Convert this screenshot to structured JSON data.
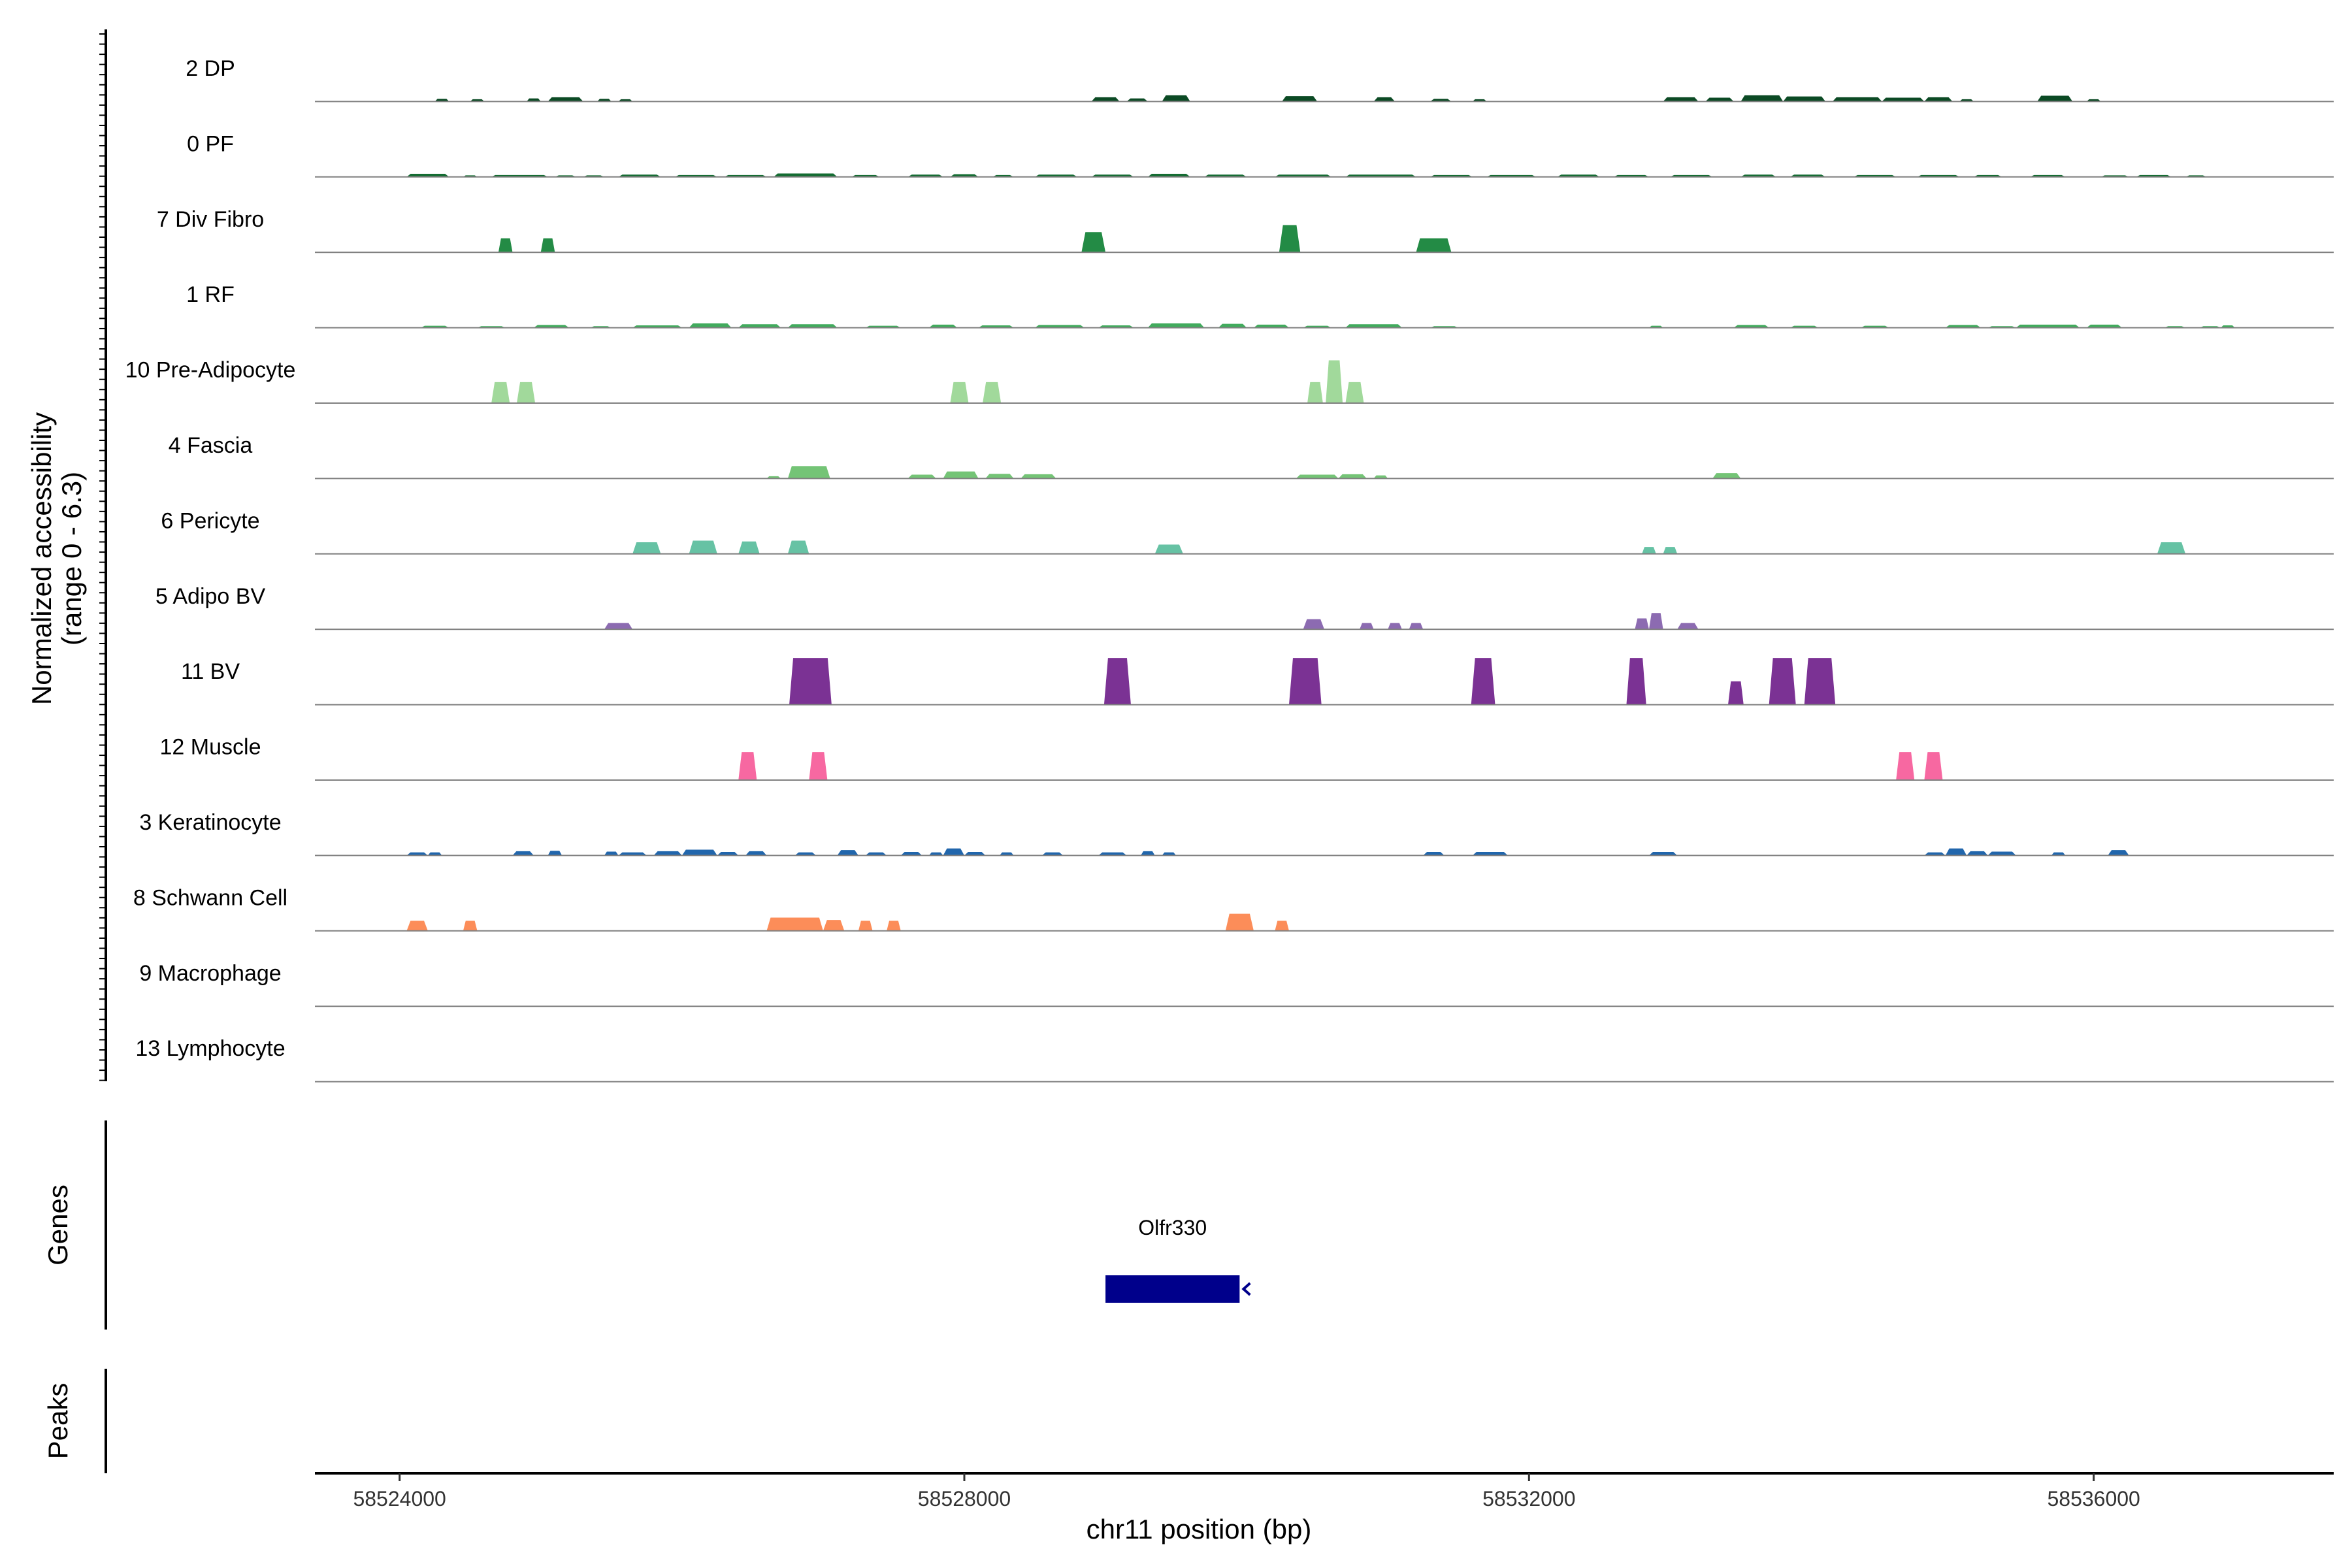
{
  "chart_data": {
    "type": "area",
    "title": "",
    "ylabel_line1": "Normalized accessibility",
    "ylabel_line2": "(range 0 - 6.3)",
    "ylim": [
      0,
      6.3
    ],
    "xlabel": "chr11 position (bp)",
    "xlim": [
      58523400,
      58537700
    ],
    "xticks": [
      58524000,
      58528000,
      58532000,
      58536000
    ],
    "xtick_labels": [
      "58524000",
      "58528000",
      "58532000",
      "58536000"
    ],
    "tracks": [
      {
        "name": "2 DP",
        "color": "#0b4a24",
        "peaks": [
          [
            58524250,
            58524350,
            0.35
          ],
          [
            58524500,
            58524600,
            0.3
          ],
          [
            58524900,
            58525000,
            0.4
          ],
          [
            58525050,
            58525300,
            0.55
          ],
          [
            58525400,
            58525500,
            0.35
          ],
          [
            58525550,
            58525650,
            0.3
          ],
          [
            58528900,
            58529100,
            0.55
          ],
          [
            58529150,
            58529300,
            0.4
          ],
          [
            58529400,
            58529600,
            0.8
          ],
          [
            58530250,
            58530500,
            0.7
          ],
          [
            58530900,
            58531050,
            0.55
          ],
          [
            58531300,
            58531450,
            0.35
          ],
          [
            58531600,
            58531700,
            0.3
          ],
          [
            58532950,
            58533200,
            0.55
          ],
          [
            58533250,
            58533450,
            0.5
          ],
          [
            58533500,
            58533800,
            0.8
          ],
          [
            58533800,
            58534100,
            0.65
          ],
          [
            58534150,
            58534500,
            0.55
          ],
          [
            58534500,
            58534800,
            0.5
          ],
          [
            58534800,
            58535000,
            0.55
          ],
          [
            58535050,
            58535150,
            0.3
          ],
          [
            58535600,
            58535850,
            0.75
          ],
          [
            58535950,
            58536050,
            0.3
          ]
        ]
      },
      {
        "name": "0 PF",
        "color": "#146c32",
        "peaks": [
          [
            58524050,
            58524350,
            0.4
          ],
          [
            58524450,
            58524550,
            0.2
          ],
          [
            58524650,
            58525050,
            0.25
          ],
          [
            58525100,
            58525250,
            0.2
          ],
          [
            58525300,
            58525450,
            0.2
          ],
          [
            58525550,
            58525850,
            0.3
          ],
          [
            58525950,
            58526250,
            0.25
          ],
          [
            58526300,
            58526600,
            0.25
          ],
          [
            58526650,
            58527100,
            0.45
          ],
          [
            58527200,
            58527400,
            0.25
          ],
          [
            58527600,
            58527850,
            0.3
          ],
          [
            58527900,
            58528100,
            0.35
          ],
          [
            58528200,
            58528350,
            0.25
          ],
          [
            58528500,
            58528800,
            0.3
          ],
          [
            58528900,
            58529200,
            0.3
          ],
          [
            58529300,
            58529600,
            0.4
          ],
          [
            58529700,
            58530000,
            0.3
          ],
          [
            58530200,
            58530600,
            0.3
          ],
          [
            58530700,
            58531200,
            0.3
          ],
          [
            58531300,
            58531600,
            0.25
          ],
          [
            58531700,
            58532050,
            0.25
          ],
          [
            58532200,
            58532500,
            0.3
          ],
          [
            58532600,
            58532850,
            0.25
          ],
          [
            58533000,
            58533300,
            0.25
          ],
          [
            58533500,
            58533750,
            0.3
          ],
          [
            58533850,
            58534100,
            0.3
          ],
          [
            58534300,
            58534600,
            0.25
          ],
          [
            58534750,
            58535050,
            0.25
          ],
          [
            58535150,
            58535350,
            0.25
          ],
          [
            58535550,
            58535800,
            0.25
          ],
          [
            58536050,
            58536250,
            0.2
          ],
          [
            58536300,
            58536550,
            0.25
          ],
          [
            58536650,
            58536800,
            0.2
          ]
        ]
      },
      {
        "name": "7 Div Fibro",
        "color": "#238b45",
        "peaks": [
          [
            58524700,
            58524800,
            1.8
          ],
          [
            58525000,
            58525100,
            1.8
          ],
          [
            58528830,
            58529000,
            2.6
          ],
          [
            58530230,
            58530380,
            3.5
          ],
          [
            58531200,
            58531450,
            1.8
          ]
        ]
      },
      {
        "name": "1 RF",
        "color": "#41ab5d",
        "peaks": [
          [
            58524150,
            58524350,
            0.25
          ],
          [
            58524550,
            58524750,
            0.2
          ],
          [
            58524950,
            58525200,
            0.35
          ],
          [
            58525350,
            58525500,
            0.2
          ],
          [
            58525650,
            58526000,
            0.3
          ],
          [
            58526050,
            58526350,
            0.55
          ],
          [
            58526400,
            58526700,
            0.45
          ],
          [
            58526750,
            58527100,
            0.45
          ],
          [
            58527300,
            58527550,
            0.25
          ],
          [
            58527750,
            58527950,
            0.4
          ],
          [
            58528100,
            58528350,
            0.3
          ],
          [
            58528500,
            58528850,
            0.35
          ],
          [
            58528950,
            58529200,
            0.3
          ],
          [
            58529300,
            58529700,
            0.55
          ],
          [
            58529800,
            58530000,
            0.5
          ],
          [
            58530050,
            58530300,
            0.4
          ],
          [
            58530400,
            58530600,
            0.25
          ],
          [
            58530700,
            58531100,
            0.45
          ],
          [
            58531300,
            58531500,
            0.2
          ],
          [
            58532850,
            58532950,
            0.25
          ],
          [
            58533450,
            58533700,
            0.35
          ],
          [
            58533850,
            58534050,
            0.25
          ],
          [
            58534350,
            58534550,
            0.25
          ],
          [
            58534950,
            58535200,
            0.35
          ],
          [
            58535250,
            58535450,
            0.2
          ],
          [
            58535450,
            58535900,
            0.4
          ],
          [
            58535950,
            58536200,
            0.4
          ],
          [
            58536500,
            58536650,
            0.2
          ],
          [
            58536750,
            58536900,
            0.2
          ],
          [
            58536900,
            58537000,
            0.3
          ]
        ]
      },
      {
        "name": "10 Pre-Adipocyte",
        "color": "#a1d99b",
        "peaks": [
          [
            58524650,
            58524780,
            2.7
          ],
          [
            58524830,
            58524960,
            2.7
          ],
          [
            58527900,
            58528030,
            2.7
          ],
          [
            58528130,
            58528260,
            2.7
          ],
          [
            58530430,
            58530540,
            2.7
          ],
          [
            58530560,
            58530680,
            5.5
          ],
          [
            58530700,
            58530830,
            2.7
          ]
        ]
      },
      {
        "name": "4 Fascia",
        "color": "#74c476",
        "peaks": [
          [
            58526600,
            58526700,
            0.3
          ],
          [
            58526750,
            58527050,
            1.6
          ],
          [
            58527600,
            58527800,
            0.5
          ],
          [
            58527850,
            58528100,
            0.9
          ],
          [
            58528150,
            58528350,
            0.6
          ],
          [
            58528400,
            58528650,
            0.55
          ],
          [
            58530350,
            58530650,
            0.5
          ],
          [
            58530650,
            58530850,
            0.55
          ],
          [
            58530900,
            58531000,
            0.4
          ],
          [
            58533300,
            58533500,
            0.7
          ]
        ]
      },
      {
        "name": "6 Pericyte",
        "color": "#66c2a4",
        "peaks": [
          [
            58525650,
            58525850,
            1.5
          ],
          [
            58526050,
            58526250,
            1.7
          ],
          [
            58526400,
            58526550,
            1.6
          ],
          [
            58526750,
            58526900,
            1.7
          ],
          [
            58529350,
            58529550,
            1.2
          ],
          [
            58532800,
            58532900,
            0.9
          ],
          [
            58532950,
            58533050,
            0.9
          ],
          [
            58536450,
            58536650,
            1.5
          ]
        ]
      },
      {
        "name": "5 Adipo BV",
        "color": "#8c6bb1",
        "peaks": [
          [
            58525450,
            58525650,
            0.8
          ],
          [
            58530400,
            58530550,
            1.3
          ],
          [
            58530800,
            58530900,
            0.8
          ],
          [
            58531000,
            58531100,
            0.8
          ],
          [
            58531150,
            58531250,
            0.8
          ],
          [
            58532750,
            58532850,
            1.4
          ],
          [
            58532850,
            58532950,
            2.1
          ],
          [
            58533050,
            58533200,
            0.8
          ]
        ]
      },
      {
        "name": "11 BV",
        "color": "#7b3294",
        "peaks": [
          [
            58526760,
            58527060,
            6.0
          ],
          [
            58528990,
            58529180,
            6.0
          ],
          [
            58530300,
            58530530,
            6.0
          ],
          [
            58531590,
            58531760,
            6.0
          ],
          [
            58532690,
            58532830,
            6.0
          ],
          [
            58533410,
            58533520,
            3.0
          ],
          [
            58533700,
            58533890,
            6.0
          ],
          [
            58533950,
            58534170,
            6.0
          ]
        ]
      },
      {
        "name": "12 Muscle",
        "color": "#f768a1",
        "peaks": [
          [
            58526400,
            58526530,
            3.6
          ],
          [
            58526900,
            58527030,
            3.6
          ],
          [
            58534600,
            58534730,
            3.6
          ],
          [
            58534800,
            58534930,
            3.6
          ]
        ]
      },
      {
        "name": "3 Keratinocyte",
        "color": "#2166ac",
        "peaks": [
          [
            58524050,
            58524200,
            0.4
          ],
          [
            58524200,
            58524300,
            0.4
          ],
          [
            58524800,
            58524950,
            0.55
          ],
          [
            58525050,
            58525150,
            0.6
          ],
          [
            58525450,
            58525550,
            0.5
          ],
          [
            58525550,
            58525750,
            0.4
          ],
          [
            58525800,
            58526000,
            0.55
          ],
          [
            58526000,
            58526250,
            0.75
          ],
          [
            58526250,
            58526400,
            0.45
          ],
          [
            58526450,
            58526600,
            0.55
          ],
          [
            58526800,
            58526950,
            0.4
          ],
          [
            58527100,
            58527250,
            0.7
          ],
          [
            58527300,
            58527450,
            0.4
          ],
          [
            58527550,
            58527700,
            0.45
          ],
          [
            58527750,
            58527850,
            0.4
          ],
          [
            58527850,
            58528000,
            0.9
          ],
          [
            58528000,
            58528150,
            0.45
          ],
          [
            58528250,
            58528350,
            0.4
          ],
          [
            58528550,
            58528700,
            0.4
          ],
          [
            58528950,
            58529150,
            0.4
          ],
          [
            58529250,
            58529350,
            0.55
          ],
          [
            58529400,
            58529500,
            0.4
          ],
          [
            58531250,
            58531400,
            0.45
          ],
          [
            58531600,
            58531850,
            0.45
          ],
          [
            58532850,
            58533050,
            0.45
          ],
          [
            58534800,
            58534950,
            0.4
          ],
          [
            58534950,
            58535100,
            0.9
          ],
          [
            58535100,
            58535250,
            0.55
          ],
          [
            58535250,
            58535450,
            0.5
          ],
          [
            58535700,
            58535800,
            0.4
          ],
          [
            58536100,
            58536250,
            0.7
          ]
        ]
      },
      {
        "name": "8 Schwann Cell",
        "color": "#fc8d59",
        "peaks": [
          [
            58524050,
            58524200,
            1.3
          ],
          [
            58524450,
            58524550,
            1.3
          ],
          [
            58526600,
            58527000,
            1.7
          ],
          [
            58527000,
            58527150,
            1.4
          ],
          [
            58527250,
            58527350,
            1.3
          ],
          [
            58527450,
            58527550,
            1.3
          ],
          [
            58529850,
            58530050,
            2.2
          ],
          [
            58530200,
            58530300,
            1.3
          ]
        ]
      },
      {
        "name": "9 Macrophage",
        "color": "#bdbdbd",
        "peaks": []
      },
      {
        "name": "13 Lymphocyte",
        "color": "#bdbdbd",
        "peaks": []
      }
    ],
    "genes_panel_label": "Genes",
    "peaks_panel_label": "Peaks",
    "genes": [
      {
        "name": "Olfr330",
        "start": 58529000,
        "end": 58529950,
        "strand": "-",
        "color": "#00008b"
      }
    ]
  }
}
